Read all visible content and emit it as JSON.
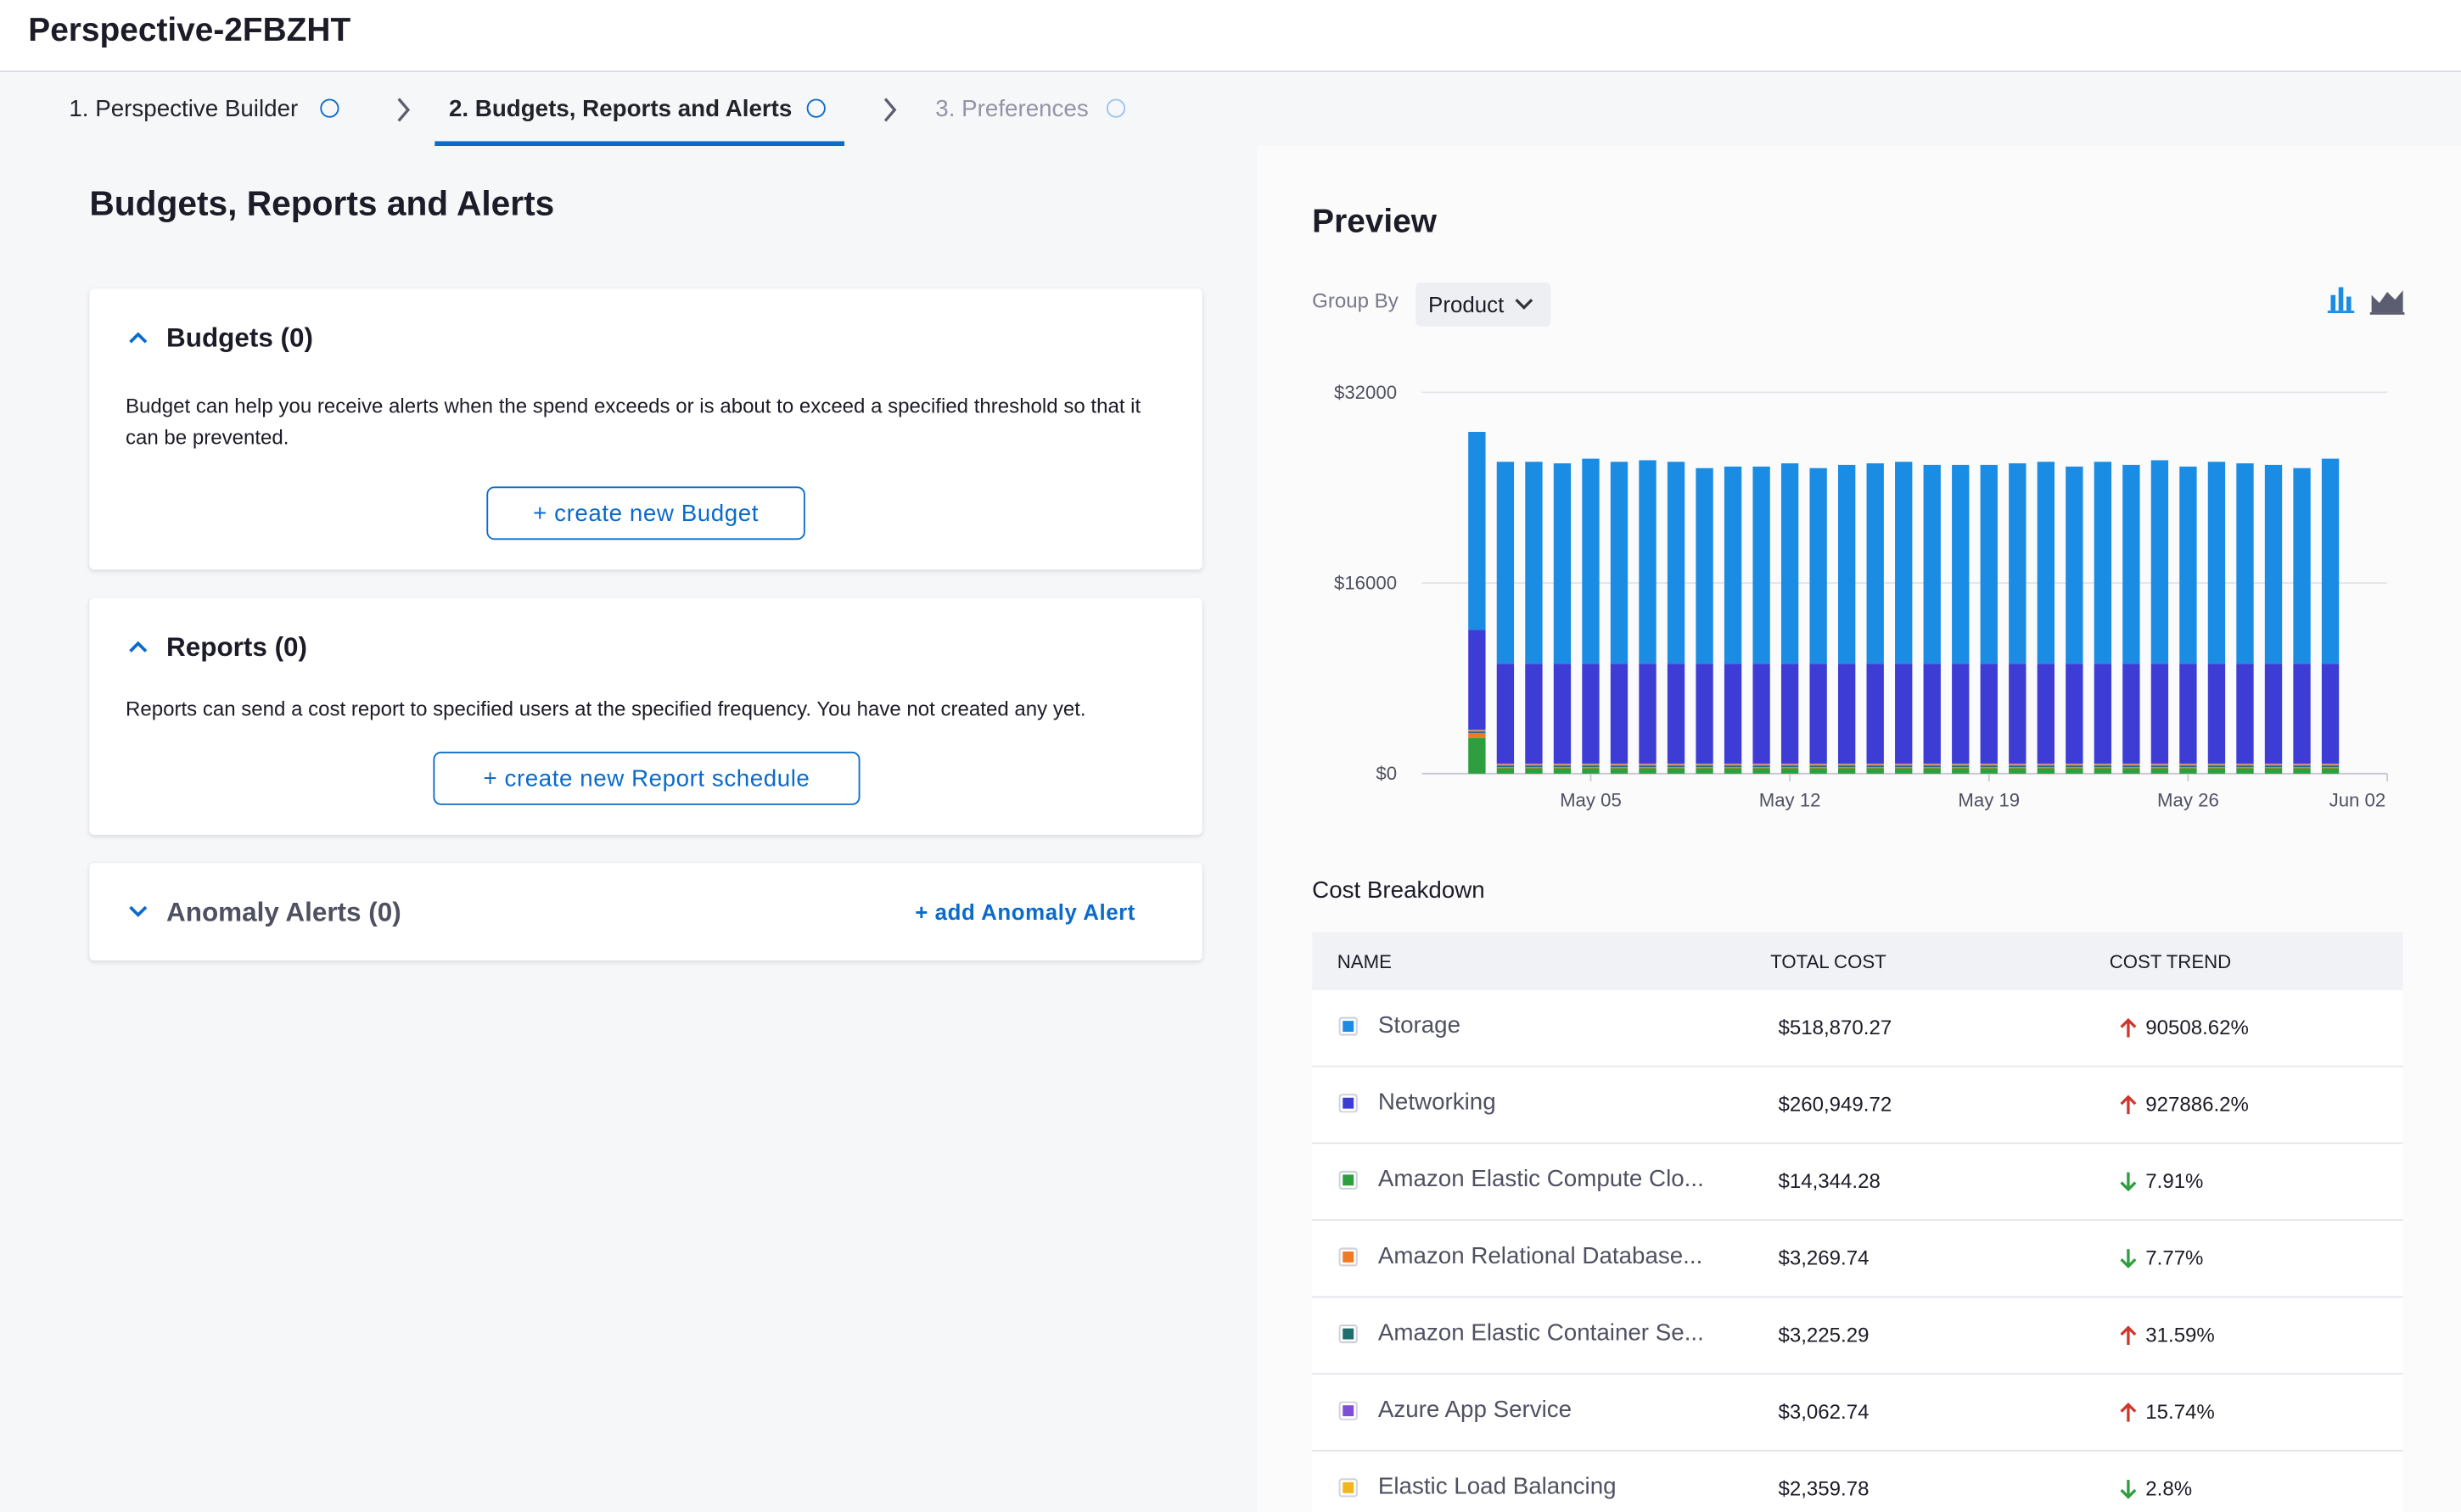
{
  "header": {
    "title": "Perspective-2FBZHT"
  },
  "steps": [
    "1. Perspective Builder",
    "2. Budgets, Reports and Alerts",
    "3. Preferences"
  ],
  "section_title": "Budgets, Reports and Alerts",
  "budgets": {
    "title": "Budgets (0)",
    "text": "Budget can help you receive alerts when the spend exceeds or is about to exceed a specified threshold so that it can be prevented.",
    "button": "+ create new Budget"
  },
  "reports": {
    "title": "Reports (0)",
    "text": "Reports can send a cost report to specified users at the specified frequency. You have not created any yet.",
    "button": "+ create new Report schedule"
  },
  "anomaly": {
    "title": "Anomaly Alerts (0)",
    "button": "+ add Anomaly Alert"
  },
  "preview": {
    "title": "Preview",
    "group_by_label": "Group By",
    "group_by_value": "Product"
  },
  "chart_data": {
    "type": "stacked-bar",
    "grid": true,
    "categories": [
      null,
      null,
      null,
      null,
      "May 05",
      null,
      null,
      null,
      null,
      null,
      null,
      "May 12",
      null,
      null,
      null,
      null,
      null,
      null,
      "May 19",
      null,
      null,
      null,
      null,
      null,
      null,
      "May 26",
      null,
      null,
      null,
      null,
      null,
      null,
      "Jun 02"
    ],
    "ylim": [
      0,
      32000
    ],
    "yticks": [
      {
        "value": 0,
        "label": "$0"
      },
      {
        "value": 16000,
        "label": "$16000"
      },
      {
        "value": 32000,
        "label": "$32000"
      }
    ],
    "series": [
      {
        "name": "Amazon Elastic Compute Clo...",
        "color": "#2e9e3e",
        "values": [
          3000,
          450,
          450,
          450,
          450,
          450,
          450,
          450,
          450,
          450,
          450,
          450,
          450,
          450,
          450,
          450,
          450,
          450,
          450,
          450,
          450,
          450,
          450,
          450,
          450,
          450,
          450,
          450,
          450,
          450,
          450,
          null,
          null
        ]
      },
      {
        "name": "Amazon Relational Database...",
        "color": "#f07a22",
        "values": [
          400,
          100,
          100,
          100,
          100,
          100,
          100,
          100,
          100,
          100,
          100,
          100,
          100,
          100,
          100,
          100,
          100,
          100,
          100,
          100,
          100,
          100,
          100,
          100,
          100,
          100,
          100,
          100,
          100,
          100,
          100,
          null,
          null
        ]
      },
      {
        "name": "Amazon Elastic Container Se...",
        "color": "#1f6e6e",
        "values": [
          100,
          100,
          100,
          100,
          100,
          100,
          100,
          100,
          100,
          100,
          100,
          100,
          100,
          100,
          100,
          100,
          100,
          100,
          100,
          100,
          100,
          100,
          100,
          100,
          100,
          100,
          100,
          100,
          100,
          100,
          100,
          null,
          null
        ]
      },
      {
        "name": "Azure App Service",
        "color": "#7d4fd6",
        "values": [
          100,
          100,
          100,
          100,
          100,
          100,
          100,
          100,
          100,
          100,
          100,
          100,
          100,
          100,
          100,
          100,
          100,
          100,
          100,
          100,
          100,
          100,
          100,
          100,
          100,
          100,
          100,
          100,
          100,
          100,
          100,
          null,
          null
        ]
      },
      {
        "name": "Elastic Load Balancing",
        "color": "#f2b51f",
        "values": [
          80,
          80,
          80,
          80,
          80,
          80,
          80,
          80,
          80,
          80,
          80,
          80,
          80,
          80,
          80,
          80,
          80,
          80,
          80,
          80,
          80,
          80,
          80,
          80,
          80,
          80,
          80,
          80,
          80,
          80,
          80,
          null,
          null
        ]
      },
      {
        "name": "Networking",
        "color": "#3d3dd6",
        "values": [
          8400,
          8400,
          8400,
          8400,
          8400,
          8400,
          8400,
          8400,
          8400,
          8400,
          8400,
          8400,
          8400,
          8400,
          8400,
          8400,
          8400,
          8400,
          8400,
          8400,
          8400,
          8400,
          8400,
          8400,
          8400,
          8400,
          8400,
          8400,
          8400,
          8400,
          8400,
          null,
          null
        ]
      },
      {
        "name": "Storage",
        "color": "#1b8ce3",
        "values": [
          16600,
          16940,
          16940,
          16810,
          17200,
          16940,
          17070,
          16940,
          16410,
          16540,
          16540,
          16810,
          16410,
          16680,
          16810,
          16940,
          16680,
          16680,
          16680,
          16810,
          16940,
          16540,
          16940,
          16680,
          17070,
          16540,
          16940,
          16810,
          16680,
          16410,
          17200,
          null,
          null
        ]
      }
    ]
  },
  "cost_breakdown": {
    "title": "Cost Breakdown",
    "columns": [
      "NAME",
      "TOTAL COST",
      "COST TREND"
    ],
    "rows": [
      {
        "series": 6,
        "total_cost": "$518,870.27",
        "trend": "90508.62%",
        "direction": "up"
      },
      {
        "series": 5,
        "total_cost": "$260,949.72",
        "trend": "927886.2%",
        "direction": "up"
      },
      {
        "series": 0,
        "total_cost": "$14,344.28",
        "trend": "7.91%",
        "direction": "down"
      },
      {
        "series": 1,
        "total_cost": "$3,269.74",
        "trend": "7.77%",
        "direction": "down"
      },
      {
        "series": 2,
        "total_cost": "$3,225.29",
        "trend": "31.59%",
        "direction": "up"
      },
      {
        "series": 3,
        "total_cost": "$3,062.74",
        "trend": "15.74%",
        "direction": "up"
      },
      {
        "series": 4,
        "total_cost": "$2,359.78",
        "trend": "2.8%",
        "direction": "down"
      }
    ]
  }
}
